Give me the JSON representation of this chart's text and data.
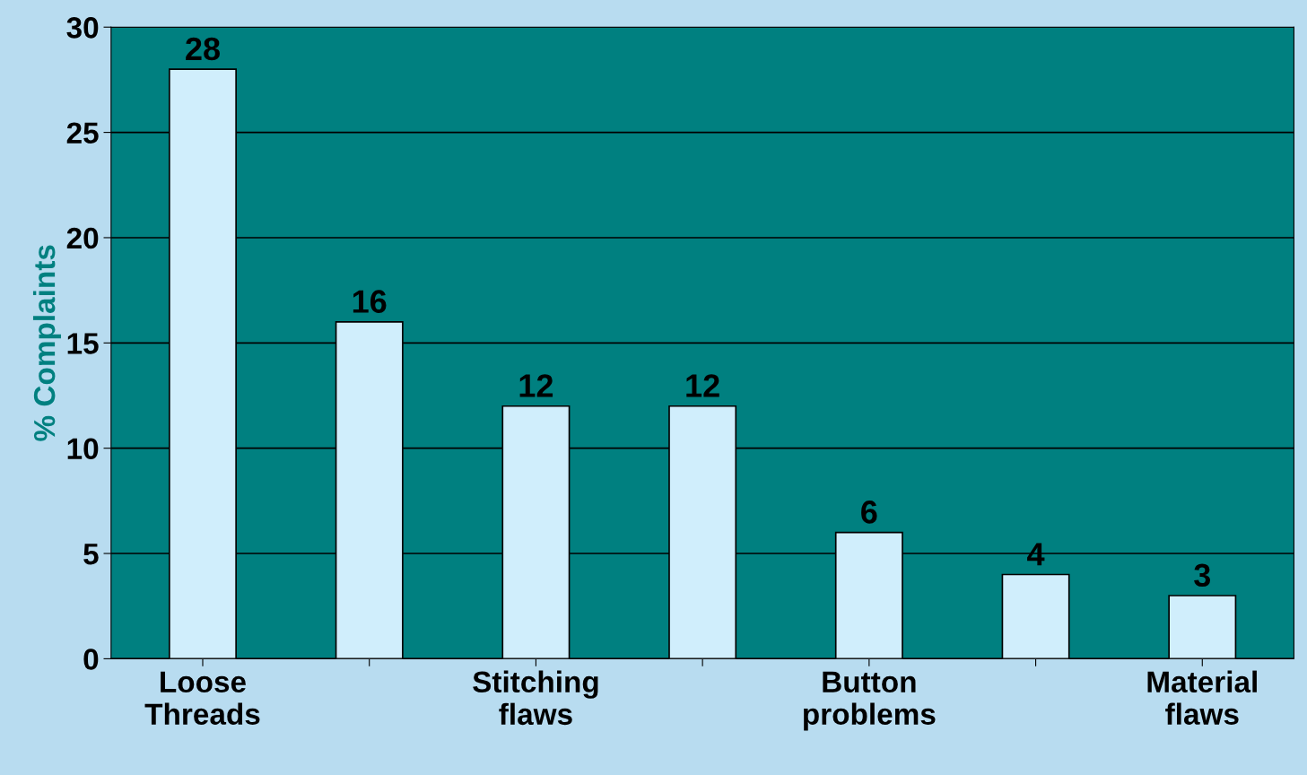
{
  "chart_data": {
    "type": "bar",
    "ylabel": "% Complaints",
    "categories": [
      "Loose Threads",
      null,
      "Stitching flaws",
      null,
      "Button problems",
      null,
      "Material flaws"
    ],
    "values": [
      28,
      16,
      12,
      12,
      6,
      4,
      3
    ],
    "color": "#d0eefc",
    "ylim": [
      0,
      30
    ],
    "yticks": [
      0,
      5,
      10,
      15,
      20,
      25,
      30
    ],
    "grid": "y",
    "data_labels": true
  }
}
